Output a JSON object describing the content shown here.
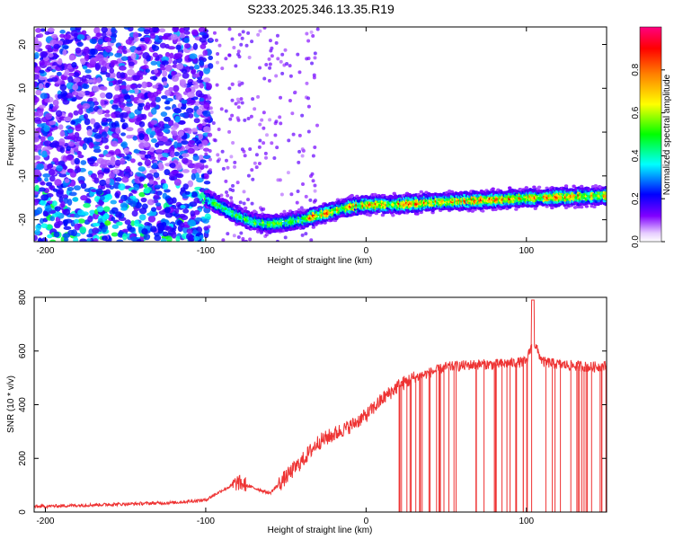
{
  "title": "S233.2025.346.13.35.R19",
  "chart_data": [
    {
      "type": "heatmap",
      "xlabel": "Height of straight line (km)",
      "ylabel": "Frequency (Hz)",
      "xlim": [
        -207,
        150
      ],
      "ylim": [
        -25,
        24
      ],
      "xticks": [
        -200,
        -100,
        0,
        100
      ],
      "yticks": [
        -20,
        -10,
        0,
        10,
        20
      ],
      "tick_labels_x": [
        "-200",
        "-100",
        "0",
        "100"
      ],
      "tick_labels_y": [
        "-20",
        "-10",
        "0",
        "10",
        "20"
      ],
      "colorbar": {
        "label": "Normalized spectral amplitude",
        "range": [
          0,
          1
        ],
        "ticks": [
          0,
          0.2,
          0.4,
          0.6,
          0.8
        ],
        "tick_labels": [
          "0.0",
          "0.2",
          "0.4",
          "0.6",
          "0.8"
        ],
        "colormap": [
          "#ffffff",
          "#8000ff",
          "#0000ff",
          "#00ffff",
          "#00ff00",
          "#ffff00",
          "#ff8000",
          "#ff0000",
          "#ff0080"
        ]
      },
      "ridge": {
        "x": [
          -100,
          -90,
          -80,
          -70,
          -60,
          -50,
          -40,
          -30,
          -20,
          -10,
          0,
          20,
          40,
          60,
          80,
          100,
          120,
          150
        ],
        "freq": [
          -15,
          -17,
          -19,
          -20.5,
          -21,
          -20.5,
          -20,
          -19,
          -18,
          -17,
          -16.5,
          -16.5,
          -16,
          -15.7,
          -15.4,
          -15,
          -14.8,
          -14.5
        ]
      }
    },
    {
      "type": "line",
      "xlabel": "Height of straight line (km)",
      "ylabel": "SNR (10 * v/v)",
      "xlim": [
        -207,
        150
      ],
      "ylim": [
        0,
        800
      ],
      "xticks": [
        -200,
        -100,
        0,
        100
      ],
      "yticks": [
        0,
        200,
        400,
        600,
        800
      ],
      "tick_labels_x": [
        "-200",
        "-100",
        "0",
        "100"
      ],
      "tick_labels_y": [
        "0",
        "200",
        "400",
        "600",
        "800"
      ],
      "color": "#ee3333",
      "series": [
        {
          "x": [
            -207,
            -180,
            -150,
            -120,
            -100,
            -90,
            -80,
            -70,
            -60,
            -50,
            -40,
            -30,
            -20,
            -10,
            0,
            10,
            20,
            30,
            40,
            50,
            60,
            70,
            80,
            90,
            100,
            104,
            110,
            120,
            130,
            140,
            150
          ],
          "values": [
            20,
            25,
            30,
            35,
            45,
            80,
            110,
            90,
            70,
            130,
            190,
            260,
            290,
            320,
            360,
            420,
            470,
            500,
            520,
            540,
            545,
            550,
            550,
            555,
            560,
            640,
            560,
            550,
            545,
            540,
            545
          ]
        }
      ]
    }
  ]
}
